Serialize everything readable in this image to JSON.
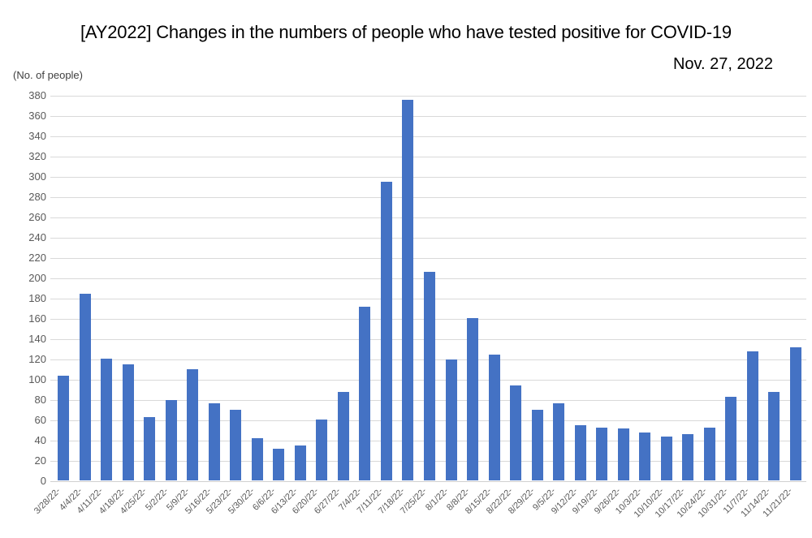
{
  "chart_data": {
    "type": "bar",
    "title": "[AY2022] Changes in the numbers of people who have tested positive for COVID-19",
    "subtitle": "Nov. 27, 2022",
    "ylabel": "(No. of people)",
    "xlabel": "",
    "categories": [
      "3/28/22-",
      "4/4/22-",
      "4/11/22-",
      "4/18/22-",
      "4/25/22-",
      "5/2/22-",
      "5/9/22-",
      "5/16/22-",
      "5/23/22-",
      "5/30/22-",
      "6/6/22-",
      "6/13/22-",
      "6/20/22-",
      "6/27/22-",
      "7/4/22-",
      "7/11/22-",
      "7/18/22-",
      "7/25/22-",
      "8/1/22-",
      "8/8/22-",
      "8/15/22-",
      "8/22/22-",
      "8/29/22-",
      "9/5/22-",
      "9/12/22-",
      "9/19/22-",
      "9/26/22-",
      "10/3/22-",
      "10/10/22-",
      "10/17/22-",
      "10/24/22-",
      "10/31/22-",
      "11/7/22-",
      "11/14/22-",
      "11/21/22-"
    ],
    "values": [
      104,
      185,
      121,
      115,
      63,
      80,
      110,
      77,
      70,
      42,
      32,
      35,
      61,
      88,
      172,
      295,
      376,
      206,
      120,
      161,
      125,
      94,
      70,
      77,
      55,
      53,
      52,
      48,
      44,
      46,
      53,
      83,
      128,
      88,
      132
    ],
    "ylim": [
      0,
      380
    ],
    "ytick_step": 20,
    "grid": true,
    "legend": false,
    "colors": {
      "bar": "#4472C4",
      "gridline": "#D9D9D9",
      "axis_line": "#D0D0D0",
      "tick_label": "#595959",
      "title": "#000000"
    }
  }
}
